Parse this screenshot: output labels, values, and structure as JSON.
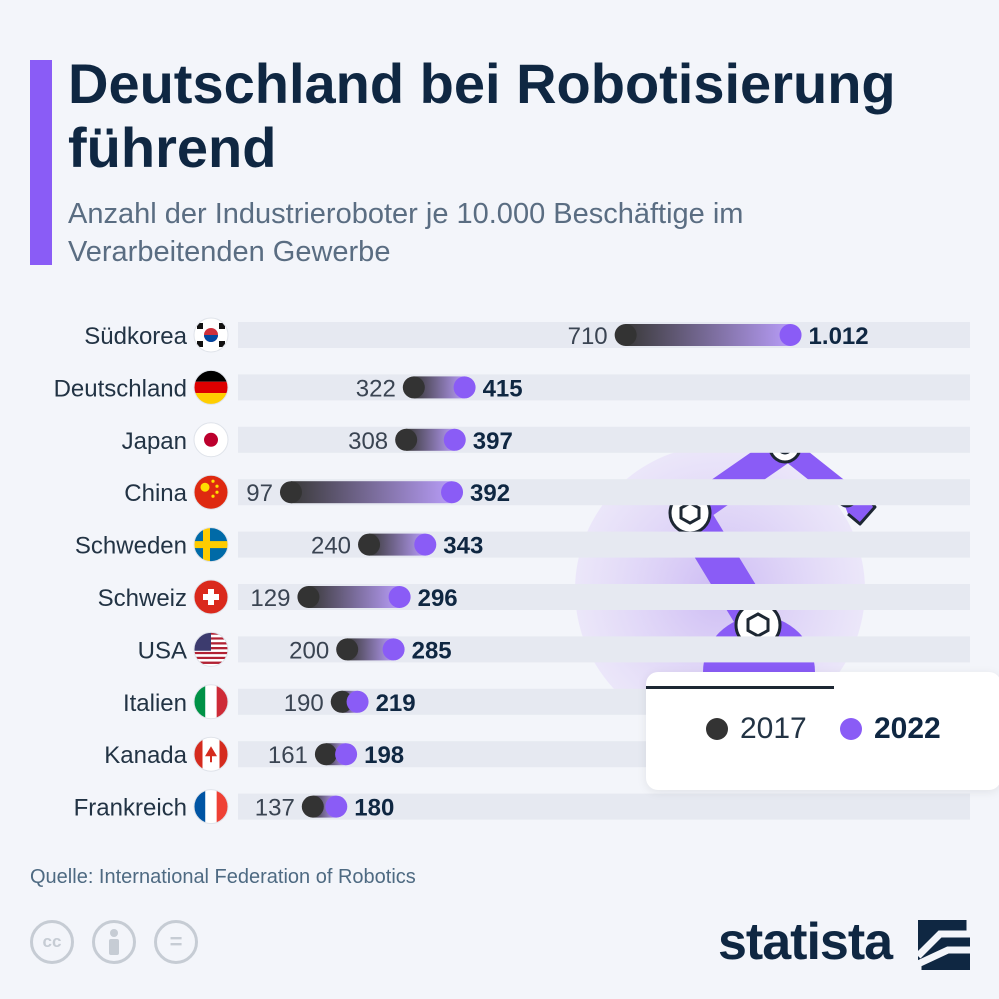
{
  "header": {
    "title": "Deutschland bei Robotisierung führend",
    "subtitle": "Anzahl der Industrieroboter je 10.000 Beschäftige im Verarbeitenden Gewerbe"
  },
  "colors": {
    "accent": "#8a5cf6",
    "dot_2017": "#333333",
    "dot_2022": "#8a5cf6",
    "title": "#0f2742"
  },
  "chart_data": {
    "type": "dumbbell",
    "title": "Deutschland bei Robotisierung führend",
    "subtitle": "Anzahl der Industrieroboter je 10.000 Beschäftige im Verarbeitenden Gewerbe",
    "categories": [
      "Südkorea",
      "Deutschland",
      "Japan",
      "China",
      "Schweden",
      "Schweiz",
      "USA",
      "Italien",
      "Kanada",
      "Frankreich"
    ],
    "series": [
      {
        "name": "2017",
        "values": [
          710,
          322,
          308,
          97,
          240,
          129,
          200,
          190,
          161,
          137
        ],
        "labels": [
          "710",
          "322",
          "308",
          "97",
          "240",
          "129",
          "200",
          "190",
          "161",
          "137"
        ]
      },
      {
        "name": "2022",
        "values": [
          1012,
          415,
          397,
          392,
          343,
          296,
          285,
          219,
          198,
          180
        ],
        "labels": [
          "1.012",
          "415",
          "397",
          "392",
          "343",
          "296",
          "285",
          "219",
          "198",
          "180"
        ]
      }
    ],
    "flags": [
      "south-korea-flag-icon",
      "germany-flag-icon",
      "japan-flag-icon",
      "china-flag-icon",
      "sweden-flag-icon",
      "switzerland-flag-icon",
      "usa-flag-icon",
      "italy-flag-icon",
      "canada-flag-icon",
      "france-flag-icon"
    ],
    "legend_position": "bottom-right",
    "grid": false
  },
  "legend": {
    "label_2017": "2017",
    "label_2022": "2022"
  },
  "footer": {
    "source": "Quelle: International Federation of Robotics",
    "brand": "statista",
    "license_icons": [
      "cc-icon",
      "by-icon",
      "nd-icon"
    ],
    "cc_text": "cc",
    "nd_text": "="
  }
}
